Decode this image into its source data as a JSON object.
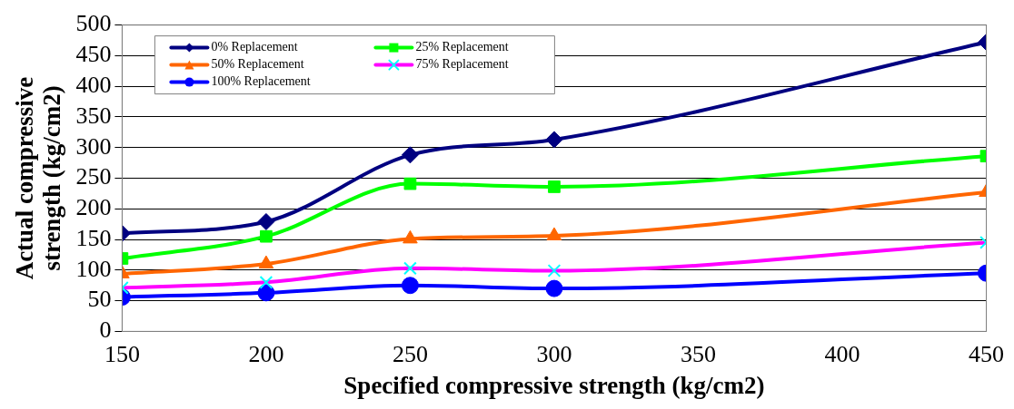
{
  "chart_data": {
    "type": "line",
    "xlabel": "Specified compressive strength (kg/cm2)",
    "ylabel": "Actual compressive strength (kg/cm2)",
    "x": [
      150,
      200,
      250,
      300,
      450
    ],
    "xlim": [
      150,
      450
    ],
    "xticks": [
      150,
      200,
      250,
      300,
      350,
      400,
      450
    ],
    "ylim": [
      0,
      500
    ],
    "yticks": [
      0,
      50,
      100,
      150,
      200,
      250,
      300,
      350,
      400,
      450,
      500
    ],
    "grid": "y",
    "legend": "top left",
    "line_style": "solid",
    "series": [
      {
        "name": "0% Replacement",
        "color": "#000080",
        "marker": "diamond",
        "values": [
          160,
          179,
          288,
          313,
          472
        ]
      },
      {
        "name": "25% Replacement",
        "color": "#00ff00",
        "marker": "square",
        "values": [
          119,
          155,
          241,
          236,
          286
        ]
      },
      {
        "name": "50% Replacement",
        "color": "#ff6600",
        "marker": "triangle",
        "values": [
          94,
          110,
          151,
          156,
          227
        ]
      },
      {
        "name": "75% Replacement",
        "color": "#ff00ff",
        "marker": "cross",
        "values": [
          71,
          80,
          103,
          99,
          145
        ]
      },
      {
        "name": "100% Replacement",
        "color": "#0000ff",
        "marker": "circle",
        "values": [
          56,
          63,
          75,
          70,
          95
        ]
      }
    ]
  }
}
